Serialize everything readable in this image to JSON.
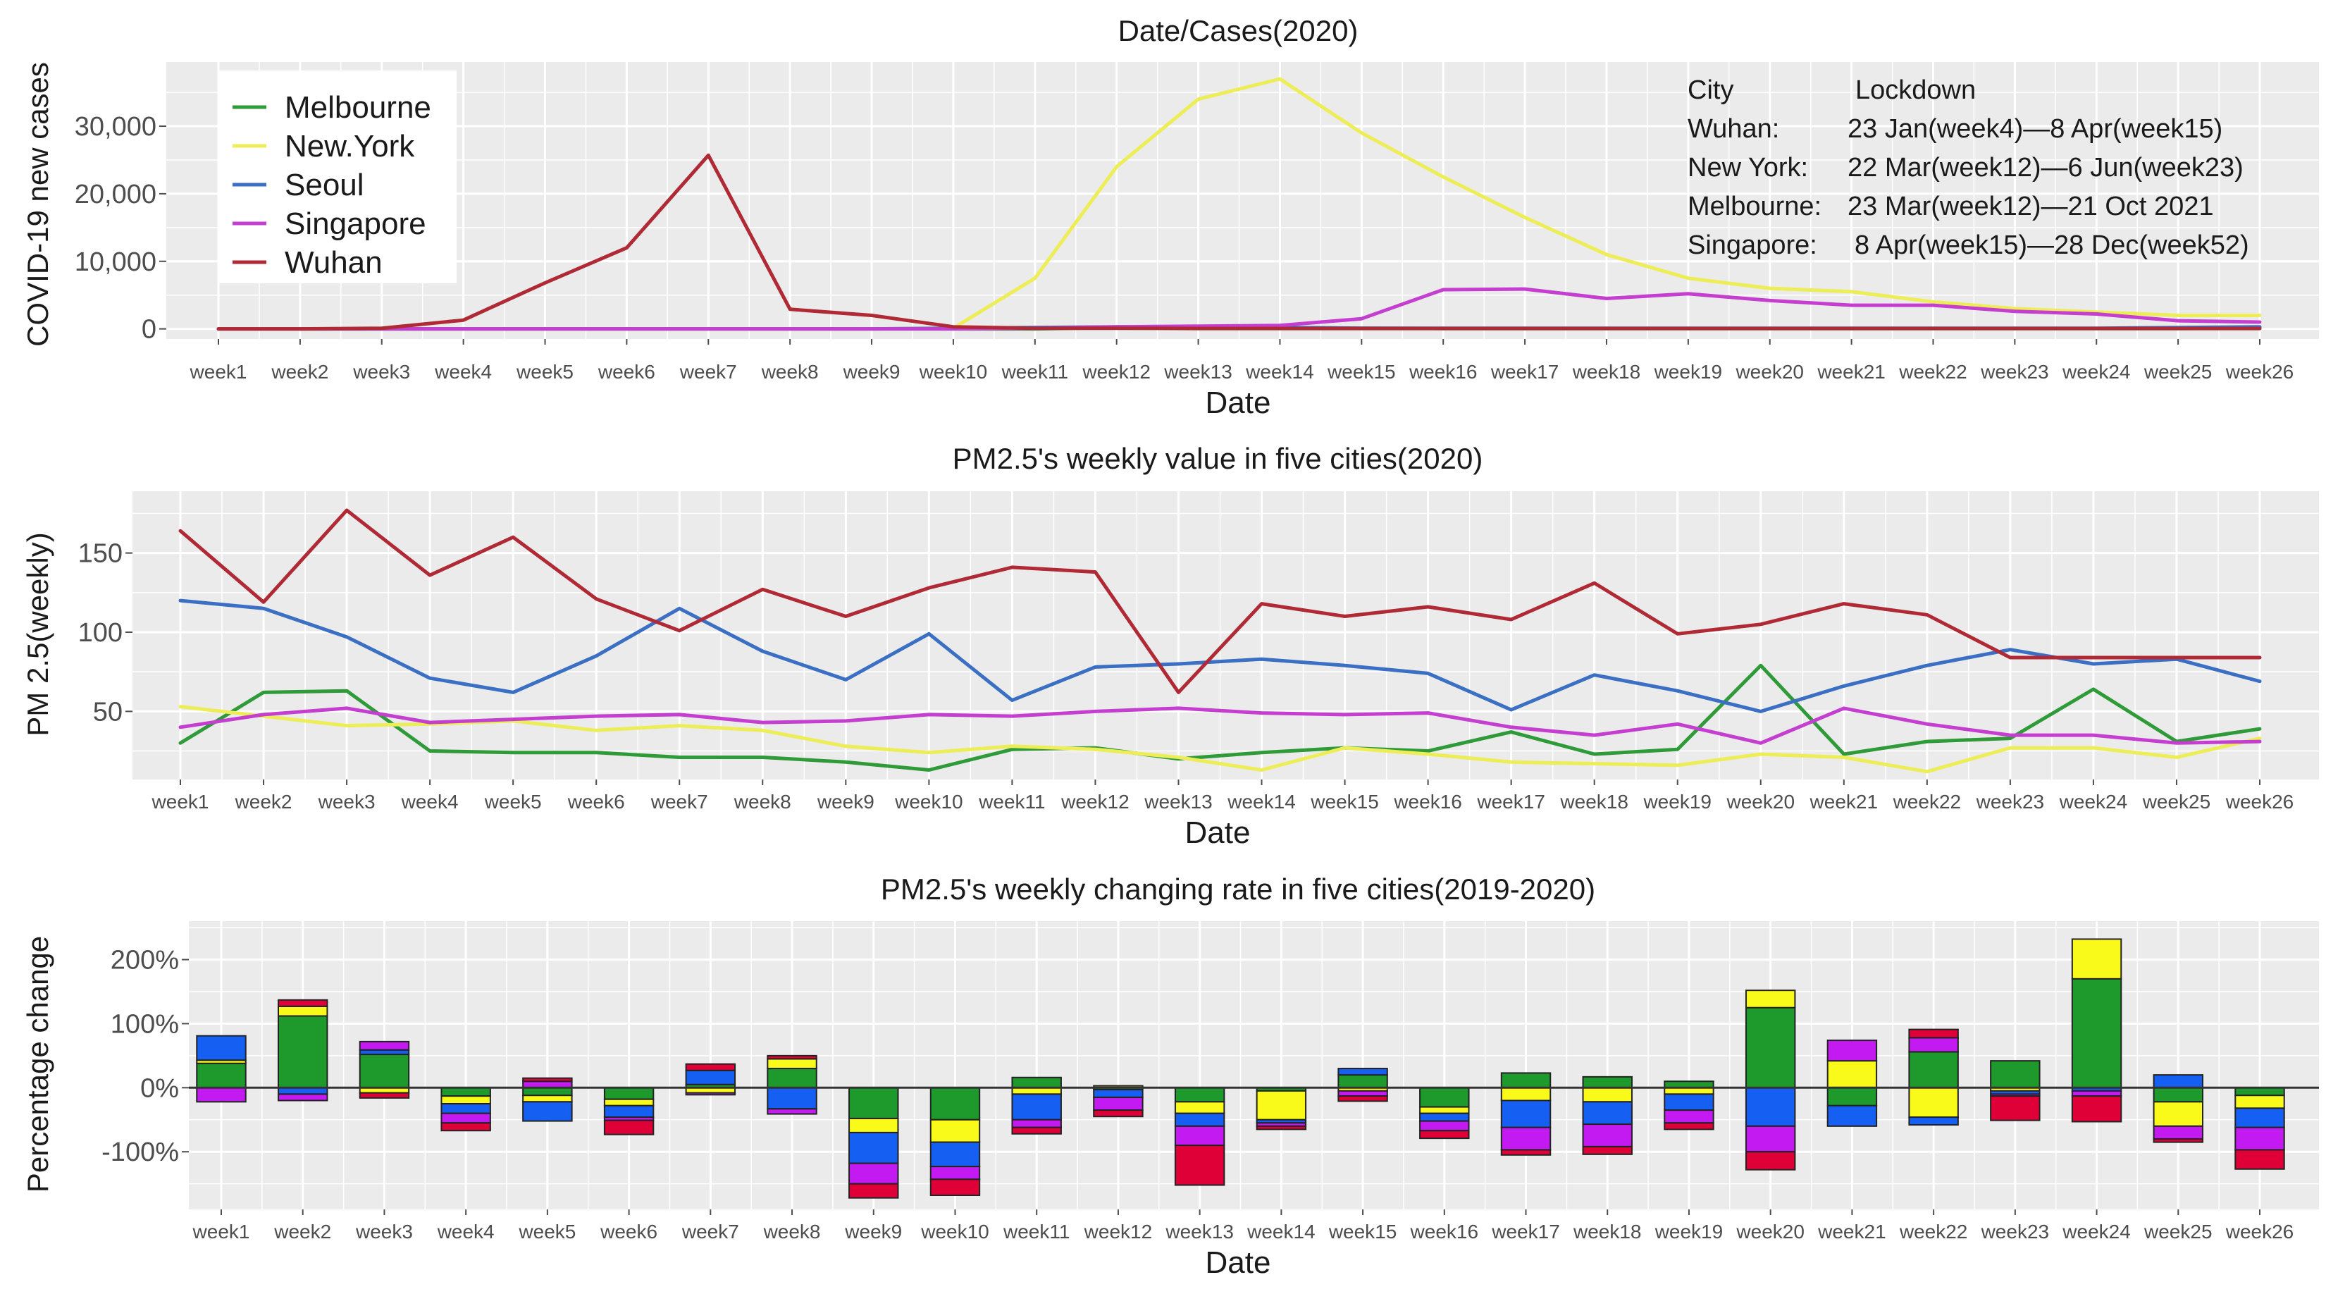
{
  "colors": {
    "Melbourne": "#2e9a38",
    "New.York": "#eded58",
    "Seoul": "#3a6fc4",
    "Singapore": "#c43fd0",
    "Wuhan": "#b02a36"
  },
  "bar_colors": {
    "Melbourne": "#1e9a2c",
    "New.York": "#fafa1a",
    "Seoul": "#1560f2",
    "Singapore": "#c41af2",
    "Wuhan": "#e00038"
  },
  "lockdown_note": {
    "header_city": "City",
    "header_lockdown": "Lockdown",
    "rows": [
      {
        "city": "Wuhan:",
        "period": "23 Jan(week4)—8 Apr(week15)"
      },
      {
        "city": "New York:",
        "period": "22 Mar(week12)—6 Jun(week23)"
      },
      {
        "city": "Melbourne:",
        "period": "23 Mar(week12)—21 Oct 2021"
      },
      {
        "city": "Singapore:",
        "period": "8 Apr(week15)—28 Dec(week52)"
      }
    ]
  },
  "chart_data": [
    {
      "type": "line",
      "title": "Date/Cases(2020)",
      "xlabel": "Date",
      "ylabel": "COVID-19 new cases",
      "ylim": [
        -1500,
        39500
      ],
      "yticks": [
        0,
        10000,
        20000,
        30000
      ],
      "ytick_labels": [
        "0",
        "10,000",
        "20,000",
        "30,000"
      ],
      "legend": [
        "Melbourne",
        "New.York",
        "Seoul",
        "Singapore",
        "Wuhan"
      ],
      "legend_position": "top-left",
      "categories": [
        "week1",
        "week2",
        "week3",
        "week4",
        "week5",
        "week6",
        "week7",
        "week8",
        "week9",
        "week10",
        "week11",
        "week12",
        "week13",
        "week14",
        "week15",
        "week16",
        "week17",
        "week18",
        "week19",
        "week20",
        "week21",
        "week22",
        "week23",
        "week24",
        "week25",
        "week26"
      ],
      "series": [
        {
          "name": "Melbourne",
          "values": [
            0,
            0,
            0,
            0,
            0,
            0,
            0,
            0,
            0,
            0,
            0,
            200,
            300,
            200,
            100,
            50,
            50,
            50,
            50,
            50,
            50,
            50,
            50,
            50,
            50,
            100
          ]
        },
        {
          "name": "New.York",
          "values": [
            0,
            0,
            0,
            0,
            0,
            0,
            0,
            0,
            0,
            100,
            7500,
            24000,
            34000,
            37000,
            29000,
            22500,
            16500,
            11000,
            7500,
            6000,
            5500,
            4000,
            3000,
            2500,
            2000,
            2000
          ]
        },
        {
          "name": "Seoul",
          "values": [
            0,
            0,
            0,
            0,
            0,
            0,
            0,
            0,
            0,
            100,
            200,
            300,
            300,
            200,
            100,
            100,
            100,
            100,
            100,
            100,
            100,
            100,
            100,
            100,
            200,
            300
          ]
        },
        {
          "name": "Singapore",
          "values": [
            0,
            0,
            0,
            0,
            0,
            0,
            0,
            0,
            0,
            0,
            100,
            300,
            400,
            500,
            1500,
            5800,
            5900,
            4500,
            5200,
            4200,
            3500,
            3500,
            2600,
            2200,
            1200,
            1000
          ]
        },
        {
          "name": "Wuhan",
          "values": [
            0,
            0,
            100,
            1300,
            6800,
            12000,
            25700,
            2900,
            2000,
            300,
            100,
            100,
            50,
            50,
            50,
            50,
            50,
            50,
            50,
            50,
            50,
            50,
            50,
            50,
            50,
            50
          ]
        }
      ]
    },
    {
      "type": "line",
      "title": "PM2.5's weekly value in five cities(2020)",
      "xlabel": "Date",
      "ylabel": "PM 2.5(weekly)",
      "ylim": [
        7,
        189
      ],
      "yticks": [
        50,
        100,
        150
      ],
      "ytick_labels": [
        "50",
        "100",
        "150"
      ],
      "categories": [
        "week1",
        "week2",
        "week3",
        "week4",
        "week5",
        "week6",
        "week7",
        "week8",
        "week9",
        "week10",
        "week11",
        "week12",
        "week13",
        "week14",
        "week15",
        "week16",
        "week17",
        "week18",
        "week19",
        "week20",
        "week21",
        "week22",
        "week23",
        "week24",
        "week25",
        "week26"
      ],
      "series": [
        {
          "name": "Melbourne",
          "values": [
            30,
            62,
            63,
            25,
            24,
            24,
            21,
            21,
            18,
            13,
            26,
            27,
            20,
            24,
            27,
            25,
            37,
            23,
            26,
            79,
            23,
            31,
            33,
            64,
            31,
            39
          ]
        },
        {
          "name": "New.York",
          "values": [
            53,
            47,
            41,
            42,
            44,
            38,
            41,
            38,
            28,
            24,
            28,
            26,
            21,
            13,
            27,
            23,
            18,
            17,
            16,
            23,
            21,
            12,
            27,
            27,
            21,
            33
          ]
        },
        {
          "name": "Seoul",
          "values": [
            120,
            115,
            97,
            71,
            62,
            85,
            115,
            88,
            70,
            99,
            57,
            78,
            80,
            83,
            79,
            74,
            51,
            73,
            63,
            50,
            66,
            79,
            89,
            80,
            83,
            69
          ]
        },
        {
          "name": "Singapore",
          "values": [
            40,
            48,
            52,
            43,
            45,
            47,
            48,
            43,
            44,
            48,
            47,
            50,
            52,
            49,
            48,
            49,
            40,
            35,
            42,
            30,
            52,
            42,
            35,
            35,
            30,
            31
          ]
        },
        {
          "name": "Wuhan",
          "values": [
            164,
            119,
            177,
            136,
            160,
            121,
            101,
            127,
            110,
            128,
            141,
            138,
            62,
            118,
            110,
            116,
            108,
            131,
            99,
            105,
            118,
            111,
            84,
            84,
            84,
            84
          ]
        }
      ]
    },
    {
      "type": "bar",
      "stacked": true,
      "title": "PM2.5's weekly changing rate in five cities(2019-2020)",
      "xlabel": "Date",
      "ylabel": "Percentage change",
      "ylim": [
        -190,
        260
      ],
      "yticks": [
        -100,
        0,
        100,
        200
      ],
      "ytick_labels": [
        "-100%",
        "0%",
        "100%",
        "200%"
      ],
      "categories": [
        "week1",
        "week2",
        "week3",
        "week4",
        "week5",
        "week6",
        "week7",
        "week8",
        "week9",
        "week10",
        "week11",
        "week12",
        "week13",
        "week14",
        "week15",
        "week16",
        "week17",
        "week18",
        "week19",
        "week20",
        "week21",
        "week22",
        "week23",
        "week24",
        "week25",
        "week26"
      ],
      "series": [
        {
          "name": "Melbourne",
          "values": [
            38,
            112,
            52,
            -13,
            -12,
            -18,
            5,
            30,
            -48,
            -50,
            16,
            -3,
            -22,
            -5,
            20,
            -30,
            23,
            17,
            10,
            125,
            -28,
            56,
            42,
            170,
            -22,
            -12
          ]
        },
        {
          "name": "New.York",
          "values": [
            5,
            15,
            -8,
            -12,
            -10,
            -10,
            -8,
            15,
            -22,
            -35,
            -10,
            3,
            -18,
            -45,
            -5,
            -10,
            -20,
            -22,
            -10,
            27,
            42,
            -46,
            -5,
            62,
            -38,
            -20
          ]
        },
        {
          "name": "Seoul",
          "values": [
            38,
            -10,
            7,
            -15,
            -30,
            -18,
            22,
            -33,
            -48,
            -38,
            -40,
            -12,
            -20,
            -5,
            10,
            -12,
            -42,
            -35,
            -25,
            -60,
            -32,
            -12,
            -5,
            -5,
            20,
            -30
          ]
        },
        {
          "name": "Singapore",
          "values": [
            -22,
            -10,
            13,
            -15,
            10,
            -5,
            -3,
            -8,
            -32,
            -20,
            -12,
            -20,
            -30,
            -5,
            -8,
            -15,
            -35,
            -35,
            -20,
            -40,
            32,
            22,
            -3,
            -8,
            -20,
            -35
          ]
        },
        {
          "name": "Wuhan",
          "values": [
            0,
            10,
            -8,
            -12,
            5,
            -22,
            10,
            5,
            -22,
            -25,
            -10,
            -10,
            -62,
            -5,
            -8,
            -12,
            -8,
            -12,
            -10,
            -28,
            0,
            13,
            -38,
            -40,
            -5,
            -30
          ]
        }
      ]
    }
  ]
}
